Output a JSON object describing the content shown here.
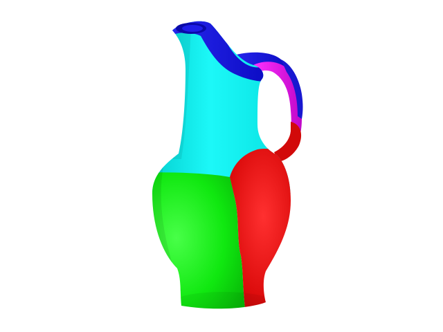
{
  "scene": {
    "background_color": "#ffffff",
    "object": "pitcher-jug",
    "segments": [
      {
        "name": "spout-rim",
        "color": "#1515d8"
      },
      {
        "name": "neck",
        "color": "#00ecec"
      },
      {
        "name": "handle-upper",
        "color": "#e010e0"
      },
      {
        "name": "body-front",
        "color": "#10e810"
      },
      {
        "name": "body-back",
        "color": "#dc0c0c"
      }
    ]
  }
}
